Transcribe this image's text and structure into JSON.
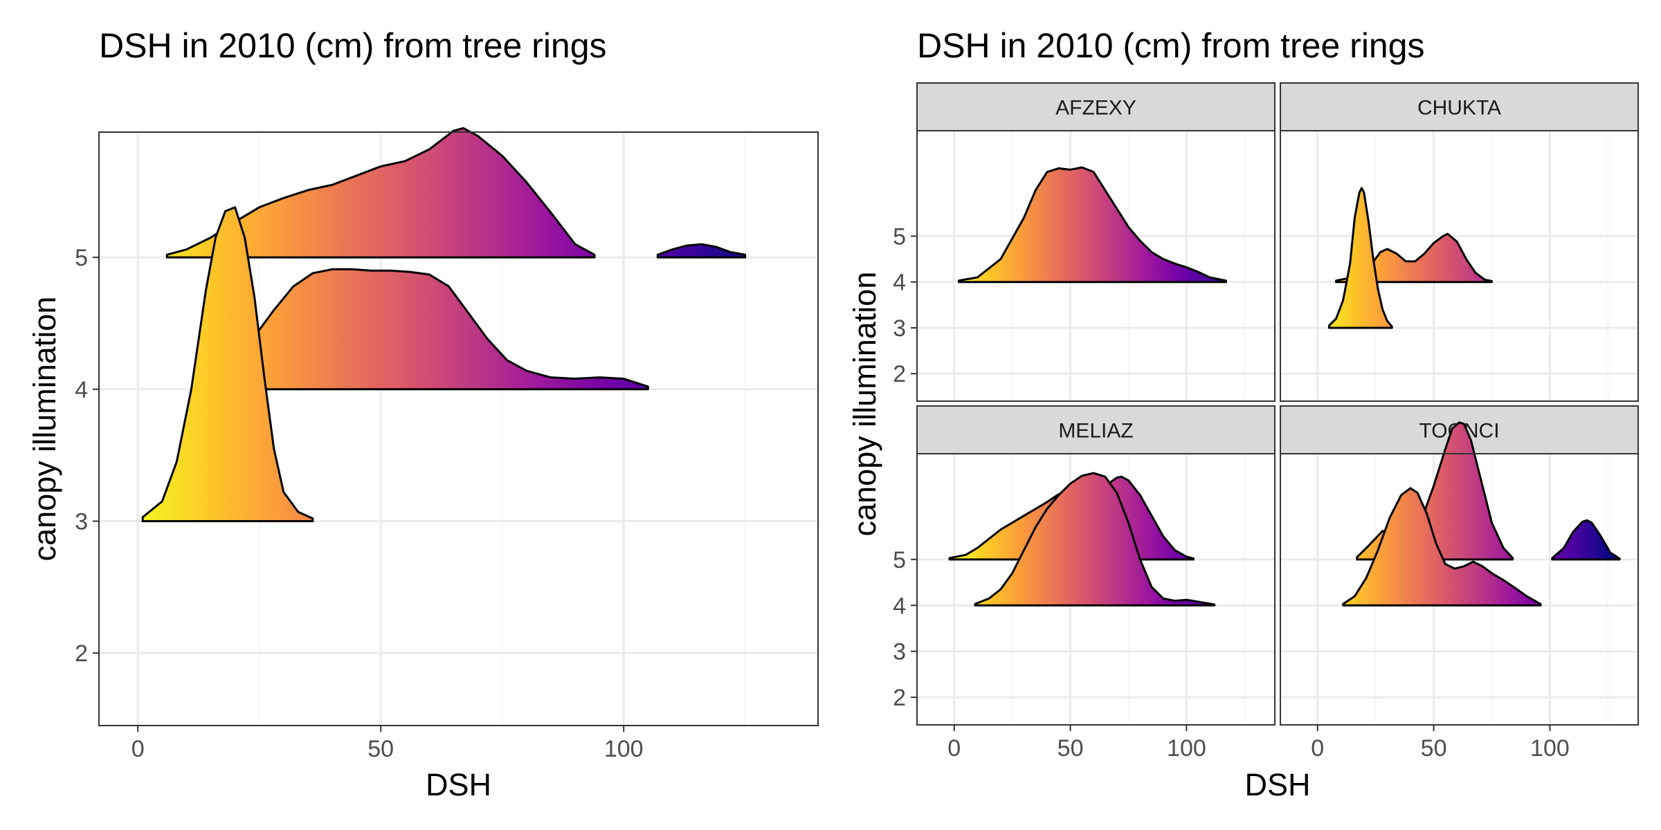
{
  "chart_data": [
    {
      "type": "ridgeline",
      "title": "DSH in 2010 (cm) from tree rings",
      "xlabel": "DSH",
      "ylabel": "canopy illumination",
      "xlim": [
        -8,
        140
      ],
      "ylim": [
        1.45,
        5.95
      ],
      "x_ticks": [
        0,
        50,
        100
      ],
      "y_ticks": [
        2,
        3,
        4,
        5
      ],
      "fill": "horizontal gradient along DSH (plasma palette, yellow at low DSH to purple at high DSH)",
      "ridges": [
        {
          "baseline": 5,
          "segments": [
            {
              "x": [
                6,
                10,
                15,
                20,
                25,
                30,
                35,
                40,
                45,
                50,
                55,
                60,
                65,
                67,
                70,
                75,
                80,
                85,
                90,
                94
              ],
              "y": [
                0.02,
                0.06,
                0.15,
                0.27,
                0.38,
                0.45,
                0.51,
                0.55,
                0.62,
                0.69,
                0.73,
                0.82,
                0.96,
                0.98,
                0.92,
                0.77,
                0.57,
                0.34,
                0.1,
                0.02
              ]
            },
            {
              "x": [
                107,
                110,
                113,
                116,
                119,
                122,
                125
              ],
              "y": [
                0.02,
                0.06,
                0.09,
                0.1,
                0.08,
                0.04,
                0.02
              ]
            }
          ]
        },
        {
          "baseline": 4,
          "segments": [
            {
              "x": [
                24,
                28,
                32,
                36,
                40,
                44,
                48,
                52,
                56,
                60,
                64,
                68,
                72,
                76,
                80,
                85,
                90,
                95,
                100,
                105
              ],
              "y": [
                0.4,
                0.6,
                0.78,
                0.88,
                0.91,
                0.91,
                0.9,
                0.9,
                0.89,
                0.87,
                0.78,
                0.58,
                0.38,
                0.22,
                0.14,
                0.09,
                0.08,
                0.09,
                0.08,
                0.02
              ]
            }
          ]
        },
        {
          "baseline": 3,
          "segments": [
            {
              "x": [
                1,
                5,
                8,
                11,
                14,
                16,
                18,
                20,
                22,
                24,
                26,
                28,
                30,
                33,
                36
              ],
              "y": [
                0.03,
                0.15,
                0.45,
                1.0,
                1.75,
                2.15,
                2.35,
                2.38,
                2.15,
                1.7,
                1.1,
                0.55,
                0.22,
                0.07,
                0.02
              ]
            }
          ]
        }
      ]
    },
    {
      "type": "ridgeline",
      "title": "DSH in 2010 (cm) from tree rings",
      "xlabel": "DSH",
      "ylabel": "canopy illumination",
      "xlim": [
        -16,
        138
      ],
      "ylim": [
        1.4,
        7.3
      ],
      "x_ticks": [
        0,
        50,
        100
      ],
      "y_ticks": [
        2,
        3,
        4,
        5
      ],
      "fill": "horizontal gradient along DSH (plasma palette)",
      "panels": [
        {
          "label": "AFZEXY",
          "ridges": [
            {
              "baseline": 4,
              "segments": [
                {
                  "x": [
                    2,
                    10,
                    20,
                    30,
                    35,
                    40,
                    45,
                    50,
                    55,
                    60,
                    65,
                    70,
                    75,
                    80,
                    85,
                    90,
                    95,
                    100,
                    105,
                    110,
                    117
                  ],
                  "y": [
                    0.03,
                    0.1,
                    0.5,
                    1.4,
                    2.0,
                    2.4,
                    2.48,
                    2.45,
                    2.5,
                    2.4,
                    2.0,
                    1.6,
                    1.2,
                    0.9,
                    0.65,
                    0.5,
                    0.4,
                    0.32,
                    0.22,
                    0.1,
                    0.03
                  ]
                }
              ]
            }
          ]
        },
        {
          "label": "CHUKTA",
          "ridges": [
            {
              "baseline": 4,
              "segments": [
                {
                  "x": [
                    8,
                    15,
                    22,
                    27,
                    30,
                    34,
                    38,
                    42,
                    46,
                    50,
                    54,
                    56,
                    60,
                    64,
                    68,
                    72,
                    75
                  ],
                  "y": [
                    0.03,
                    0.1,
                    0.3,
                    0.65,
                    0.72,
                    0.62,
                    0.45,
                    0.45,
                    0.62,
                    0.85,
                    1.0,
                    1.05,
                    0.88,
                    0.5,
                    0.2,
                    0.05,
                    0.02
                  ]
                }
              ]
            },
            {
              "baseline": 3,
              "segments": [
                {
                  "x": [
                    5,
                    8,
                    11,
                    14,
                    16,
                    18,
                    19,
                    20,
                    22,
                    24,
                    26,
                    28,
                    30,
                    32
                  ],
                  "y": [
                    0.05,
                    0.2,
                    0.6,
                    1.4,
                    2.4,
                    2.95,
                    3.05,
                    2.95,
                    2.3,
                    1.5,
                    0.85,
                    0.4,
                    0.15,
                    0.03
                  ]
                }
              ]
            }
          ]
        },
        {
          "label": "MELIAZ",
          "ridges": [
            {
              "baseline": 5,
              "segments": [
                {
                  "x": [
                    -2,
                    5,
                    10,
                    15,
                    20,
                    25,
                    30,
                    35,
                    40,
                    45,
                    50,
                    55,
                    60,
                    65,
                    70,
                    72,
                    75,
                    80,
                    85,
                    90,
                    95,
                    100,
                    103
                  ],
                  "y": [
                    0.03,
                    0.1,
                    0.25,
                    0.45,
                    0.65,
                    0.8,
                    0.95,
                    1.1,
                    1.25,
                    1.42,
                    1.38,
                    1.22,
                    1.3,
                    1.6,
                    1.78,
                    1.8,
                    1.72,
                    1.4,
                    0.95,
                    0.5,
                    0.2,
                    0.06,
                    0.02
                  ]
                }
              ]
            },
            {
              "baseline": 4,
              "segments": [
                {
                  "x": [
                    9,
                    15,
                    20,
                    25,
                    30,
                    35,
                    40,
                    45,
                    50,
                    55,
                    60,
                    65,
                    70,
                    75,
                    80,
                    85,
                    90,
                    95,
                    100,
                    105,
                    112
                  ],
                  "y": [
                    0.03,
                    0.15,
                    0.35,
                    0.7,
                    1.2,
                    1.7,
                    2.1,
                    2.4,
                    2.65,
                    2.82,
                    2.88,
                    2.8,
                    2.45,
                    1.8,
                    1.0,
                    0.4,
                    0.15,
                    0.1,
                    0.12,
                    0.08,
                    0.02
                  ]
                }
              ]
            }
          ]
        },
        {
          "label": "TOONCI",
          "ridges": [
            {
              "baseline": 5,
              "segments": [
                {
                  "x": [
                    17,
                    22,
                    28,
                    32,
                    36,
                    40,
                    45,
                    50,
                    55,
                    58,
                    61,
                    63,
                    66,
                    70,
                    75,
                    80,
                    84
                  ],
                  "y": [
                    0.05,
                    0.3,
                    0.62,
                    0.55,
                    0.4,
                    0.5,
                    0.9,
                    1.6,
                    2.4,
                    2.85,
                    2.98,
                    2.95,
                    2.6,
                    1.8,
                    0.8,
                    0.25,
                    0.03
                  ]
                },
                {
                  "x": [
                    101,
                    106,
                    110,
                    114,
                    116,
                    118,
                    122,
                    126,
                    130
                  ],
                  "y": [
                    0.03,
                    0.25,
                    0.6,
                    0.82,
                    0.85,
                    0.8,
                    0.5,
                    0.15,
                    0.02
                  ]
                }
              ]
            },
            {
              "baseline": 4,
              "segments": [
                {
                  "x": [
                    11,
                    16,
                    21,
                    26,
                    31,
                    36,
                    40,
                    43,
                    47,
                    51,
                    55,
                    59,
                    63,
                    67,
                    71,
                    75,
                    80,
                    85,
                    90,
                    96
                  ],
                  "y": [
                    0.03,
                    0.2,
                    0.6,
                    1.2,
                    1.9,
                    2.4,
                    2.55,
                    2.45,
                    2.0,
                    1.35,
                    0.9,
                    0.8,
                    0.85,
                    0.95,
                    0.85,
                    0.7,
                    0.55,
                    0.38,
                    0.2,
                    0.03
                  ]
                }
              ]
            }
          ]
        }
      ]
    }
  ]
}
